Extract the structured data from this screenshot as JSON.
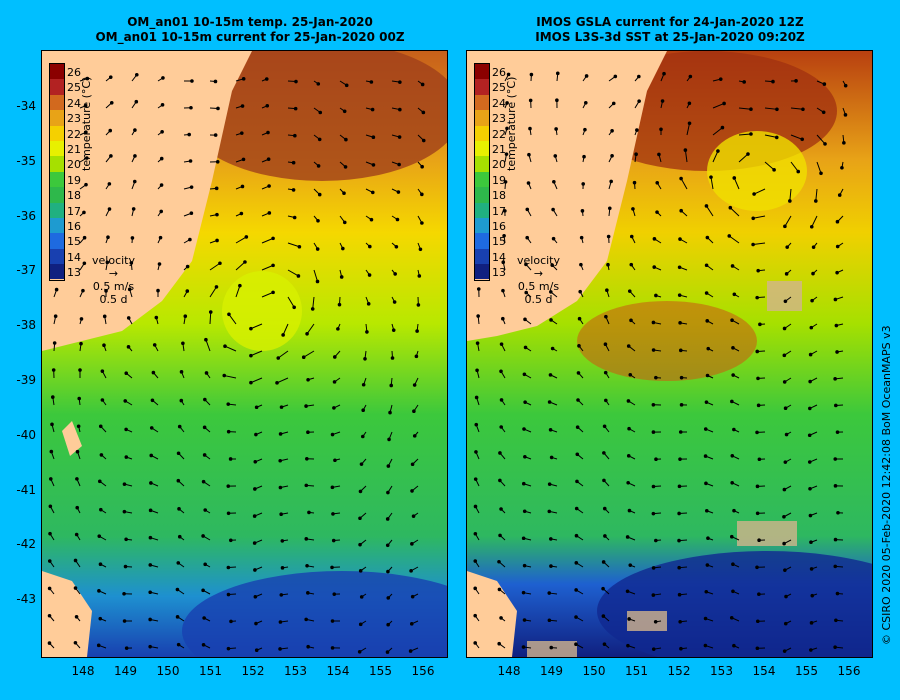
{
  "panels": [
    {
      "title_line1": "OM_an01 10-15m temp. 25-Jan-2020",
      "title_line2": "OM_an01 10-15m current for 25-Jan-2020 00Z"
    },
    {
      "title_line1": "IMOS GSLA current for 24-Jan-2020 12Z",
      "title_line2": "IMOS L3S-3d SST at 25-Jan-2020 09:20Z"
    }
  ],
  "latitude_labels": [
    "-34",
    "-35",
    "-36",
    "-37",
    "-38",
    "-39",
    "-40",
    "-41",
    "-42",
    "-43"
  ],
  "longitude_labels": [
    "148",
    "149",
    "150",
    "151",
    "152",
    "153",
    "154",
    "155",
    "156"
  ],
  "colorbar": {
    "ticks": [
      "26",
      "25",
      "24",
      "23",
      "22",
      "21",
      "20",
      "19",
      "18",
      "17",
      "16",
      "15",
      "14",
      "13"
    ],
    "title": "temperature (°C)",
    "colors": [
      "#8B0000",
      "#B22222",
      "#D2691E",
      "#E8A317",
      "#F5D000",
      "#E8F000",
      "#A6E000",
      "#3CC83C",
      "#2EB84B",
      "#20B080",
      "#1E9BD0",
      "#1E6AE0",
      "#1840B0",
      "#102080"
    ]
  },
  "velocity_key": {
    "title": "velocity",
    "speed": "0.5 m/s",
    "time": "0.5 d"
  },
  "credit": "© CSIRO 2020   05-Feb-2020 12:42:08 BoM OceanMAPS v3"
}
